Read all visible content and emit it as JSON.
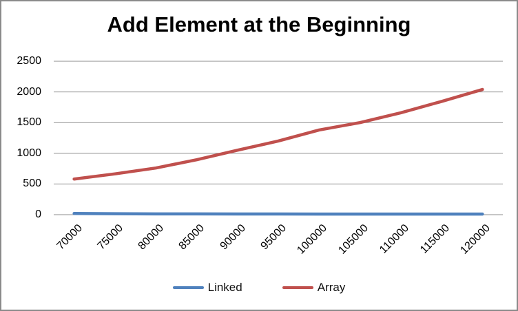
{
  "chart_data": {
    "type": "line",
    "title": "Add Element at the Beginning",
    "categories": [
      "70000",
      "75000",
      "80000",
      "85000",
      "90000",
      "95000",
      "100000",
      "105000",
      "110000",
      "115000",
      "120000"
    ],
    "series": [
      {
        "name": "Linked",
        "color": "#4F81BD",
        "values": [
          20,
          15,
          13,
          12,
          11,
          11,
          10,
          10,
          10,
          10,
          10
        ]
      },
      {
        "name": "Array",
        "color": "#C0504D",
        "values": [
          580,
          665,
          760,
          895,
          1050,
          1200,
          1380,
          1500,
          1660,
          1845,
          2040
        ]
      }
    ],
    "xlabel": "",
    "ylabel": "",
    "y_ticks": [
      0,
      500,
      1000,
      1500,
      2000,
      2500
    ],
    "ylim": [
      0,
      2500
    ],
    "grid": true,
    "legend_position": "bottom",
    "colors": {
      "frame_border": "#8a8a8a",
      "gridline": "#8e8e8e",
      "background": "#ffffff",
      "text": "#000000"
    }
  }
}
